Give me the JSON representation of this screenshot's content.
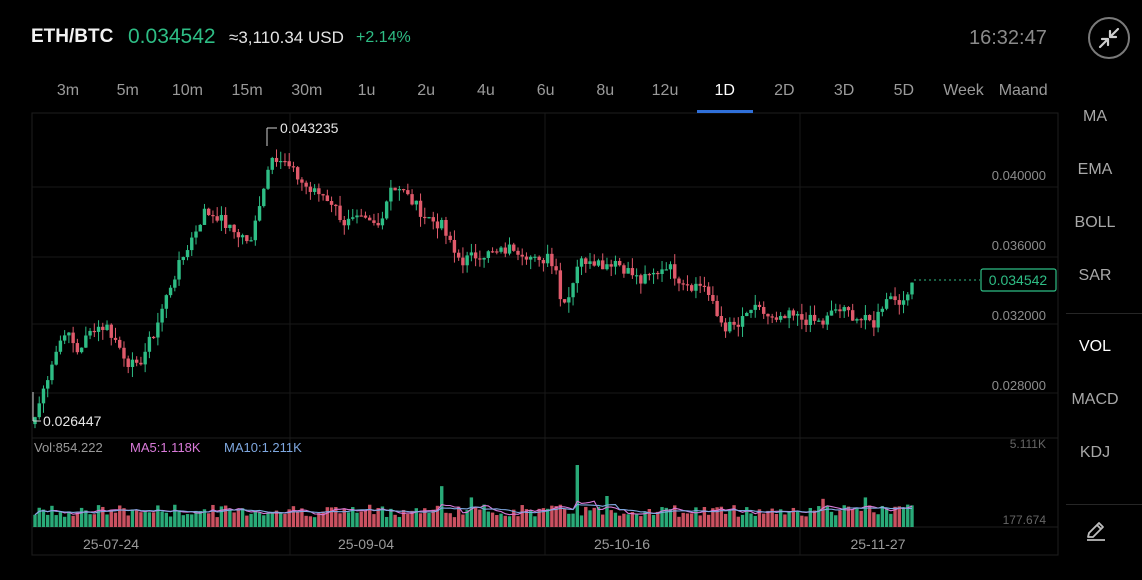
{
  "header": {
    "pair": "ETH/BTC",
    "price": "0.034542",
    "usd_value": "≈3,110.34 USD",
    "change": "+2.14%",
    "time": "16:32:47"
  },
  "intervals": [
    "3m",
    "5m",
    "10m",
    "15m",
    "30m",
    "1u",
    "2u",
    "4u",
    "6u",
    "8u",
    "12u",
    "1D",
    "2D",
    "3D",
    "5D",
    "Week",
    "Maand"
  ],
  "active_interval": "1D",
  "indicators_main": [
    "MA",
    "EMA",
    "BOLL",
    "SAR"
  ],
  "indicators_sub": [
    "VOL",
    "MACD",
    "KDJ"
  ],
  "active_sub_indicator": "VOL",
  "colors": {
    "up": "#2ebd85",
    "down": "#e05a6b",
    "ma5": "#d97ad9",
    "ma10": "#7fa8e0",
    "accent": "#2f6fd8"
  },
  "icons": {
    "collapse": "collapse-arrows-icon",
    "draw": "pencil-draw-icon"
  },
  "chart_data": {
    "type": "candlestick",
    "price_axis": {
      "ticks": [
        "0.040000",
        "0.036000",
        "0.032000",
        "0.028000"
      ],
      "range": [
        0.0256,
        0.0443
      ]
    },
    "last_price": "0.034542",
    "high_label": "0.043235",
    "low_label": "0.026447",
    "x_tick_labels": [
      "25-07-24",
      "25-09-04",
      "25-10-16",
      "25-11-27"
    ],
    "anchors": [
      [
        0,
        0.0268
      ],
      [
        4,
        0.03
      ],
      [
        7,
        0.0318
      ],
      [
        10,
        0.0306
      ],
      [
        14,
        0.032
      ],
      [
        17,
        0.032
      ],
      [
        22,
        0.03
      ],
      [
        24,
        0.0296
      ],
      [
        28,
        0.0316
      ],
      [
        32,
        0.0344
      ],
      [
        36,
        0.0366
      ],
      [
        40,
        0.0386
      ],
      [
        43,
        0.0384
      ],
      [
        46,
        0.0376
      ],
      [
        49,
        0.0372
      ],
      [
        51,
        0.0368
      ],
      [
        53,
        0.0392
      ],
      [
        56,
        0.042
      ],
      [
        59,
        0.0414
      ],
      [
        62,
        0.0406
      ],
      [
        65,
        0.0398
      ],
      [
        68,
        0.0396
      ],
      [
        70,
        0.0392
      ],
      [
        73,
        0.038
      ],
      [
        77,
        0.0381
      ],
      [
        81,
        0.0378
      ],
      [
        84,
        0.0401
      ],
      [
        86,
        0.04
      ],
      [
        89,
        0.0392
      ],
      [
        92,
        0.0384
      ],
      [
        96,
        0.0378
      ],
      [
        99,
        0.0362
      ],
      [
        101,
        0.0358
      ],
      [
        105,
        0.0362
      ],
      [
        109,
        0.0362
      ],
      [
        113,
        0.0366
      ],
      [
        116,
        0.0362
      ],
      [
        119,
        0.0356
      ],
      [
        121,
        0.0362
      ],
      [
        123,
        0.0354
      ],
      [
        124,
        0.0336
      ],
      [
        126,
        0.0338
      ],
      [
        128,
        0.0356
      ],
      [
        131,
        0.036
      ],
      [
        134,
        0.0356
      ],
      [
        137,
        0.0358
      ],
      [
        140,
        0.0352
      ],
      [
        143,
        0.0346
      ],
      [
        146,
        0.035
      ],
      [
        149,
        0.0356
      ],
      [
        152,
        0.0348
      ],
      [
        155,
        0.0344
      ],
      [
        158,
        0.0344
      ],
      [
        161,
        0.0326
      ],
      [
        163,
        0.032
      ],
      [
        166,
        0.032
      ],
      [
        169,
        0.033
      ],
      [
        172,
        0.0328
      ],
      [
        175,
        0.0322
      ],
      [
        178,
        0.0326
      ],
      [
        182,
        0.0324
      ],
      [
        186,
        0.0322
      ],
      [
        189,
        0.033
      ],
      [
        192,
        0.0328
      ],
      [
        195,
        0.0324
      ],
      [
        198,
        0.0322
      ],
      [
        201,
        0.0338
      ],
      [
        204,
        0.0336
      ],
      [
        205,
        0.0332
      ],
      [
        207,
        0.0345
      ]
    ],
    "volume": {
      "label": "Vol:854.222",
      "ma5_label": "MA5:1.118K",
      "ma10_label": "MA10:1.211K",
      "axis_max": "5.111K",
      "axis_min": "177.674",
      "max_value": 5111,
      "spikes": [
        [
          96,
          2900
        ],
        [
          103,
          2100
        ],
        [
          128,
          4400
        ],
        [
          135,
          2200
        ],
        [
          186,
          2000
        ],
        [
          196,
          2100
        ]
      ]
    }
  }
}
